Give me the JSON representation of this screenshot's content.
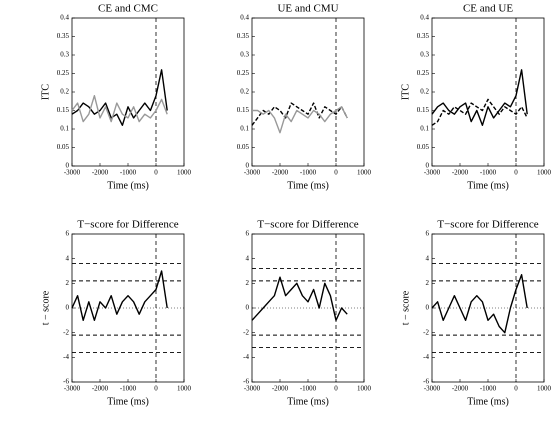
{
  "chart_data": [
    {
      "type": "line",
      "title": "CE and CMC",
      "xlabel": "Time (ms)",
      "ylabel": "ITC",
      "x": [
        -3000,
        -2800,
        -2600,
        -2400,
        -2200,
        -2000,
        -1800,
        -1600,
        -1400,
        -1200,
        -1000,
        -800,
        -600,
        -400,
        -200,
        0,
        200,
        400
      ],
      "xlim": [
        -3000,
        1000
      ],
      "xticks": [
        -3000,
        -2000,
        -1000,
        0,
        1000
      ],
      "ylim": [
        0,
        0.4
      ],
      "yticks": [
        0,
        0.05,
        0.1,
        0.15,
        0.2,
        0.25,
        0.3,
        0.35,
        0.4
      ],
      "vlines": [
        0
      ],
      "dashed_hlines": [],
      "dotted_hlines": [],
      "series": [
        {
          "color": "#000000",
          "style": "solid",
          "values": [
            0.14,
            0.15,
            0.17,
            0.16,
            0.14,
            0.15,
            0.17,
            0.13,
            0.14,
            0.11,
            0.16,
            0.13,
            0.15,
            0.17,
            0.15,
            0.19,
            0.26,
            0.15
          ]
        },
        {
          "color": "#999999",
          "style": "solid",
          "values": [
            0.15,
            0.17,
            0.12,
            0.14,
            0.19,
            0.13,
            0.16,
            0.12,
            0.17,
            0.14,
            0.13,
            0.16,
            0.12,
            0.14,
            0.13,
            0.15,
            0.18,
            0.14
          ]
        }
      ]
    },
    {
      "type": "line",
      "title": "UE and CMU",
      "xlabel": "Time (ms)",
      "x": [
        -3000,
        -2800,
        -2600,
        -2400,
        -2200,
        -2000,
        -1800,
        -1600,
        -1400,
        -1200,
        -1000,
        -800,
        -600,
        -400,
        -200,
        0,
        200,
        400
      ],
      "xlim": [
        -3000,
        1000
      ],
      "xticks": [
        -3000,
        -2000,
        -1000,
        0,
        1000
      ],
      "ylim": [
        0,
        0.4
      ],
      "yticks": [
        0,
        0.05,
        0.1,
        0.15,
        0.2,
        0.25,
        0.3,
        0.35,
        0.4
      ],
      "vlines": [
        0
      ],
      "dashed_hlines": [],
      "dotted_hlines": [],
      "series": [
        {
          "color": "#000000",
          "style": "dashed",
          "values": [
            0.11,
            0.13,
            0.15,
            0.14,
            0.16,
            0.15,
            0.13,
            0.17,
            0.16,
            0.15,
            0.14,
            0.17,
            0.13,
            0.16,
            0.15,
            0.14,
            0.16,
            0.13
          ]
        },
        {
          "color": "#999999",
          "style": "solid",
          "values": [
            0.15,
            0.15,
            0.14,
            0.15,
            0.13,
            0.09,
            0.14,
            0.12,
            0.15,
            0.14,
            0.13,
            0.15,
            0.14,
            0.12,
            0.14,
            0.15,
            0.16,
            0.13
          ]
        }
      ]
    },
    {
      "type": "line",
      "title": "CE and UE",
      "xlabel": "Time (ms)",
      "ylabel": "ITC",
      "x": [
        -3000,
        -2800,
        -2600,
        -2400,
        -2200,
        -2000,
        -1800,
        -1600,
        -1400,
        -1200,
        -1000,
        -800,
        -600,
        -400,
        -200,
        0,
        200,
        400
      ],
      "xlim": [
        -3000,
        1000
      ],
      "xticks": [
        -3000,
        -2000,
        -1000,
        0,
        1000
      ],
      "ylim": [
        0,
        0.4
      ],
      "yticks": [
        0,
        0.05,
        0.1,
        0.15,
        0.2,
        0.25,
        0.3,
        0.35,
        0.4
      ],
      "vlines": [
        0
      ],
      "dashed_hlines": [],
      "dotted_hlines": [],
      "series": [
        {
          "color": "#000000",
          "style": "solid",
          "values": [
            0.14,
            0.16,
            0.17,
            0.15,
            0.14,
            0.16,
            0.17,
            0.12,
            0.15,
            0.11,
            0.16,
            0.13,
            0.15,
            0.17,
            0.16,
            0.19,
            0.26,
            0.14
          ]
        },
        {
          "color": "#000000",
          "style": "dashed",
          "values": [
            0.11,
            0.12,
            0.15,
            0.14,
            0.16,
            0.15,
            0.14,
            0.17,
            0.16,
            0.15,
            0.18,
            0.16,
            0.14,
            0.16,
            0.15,
            0.14,
            0.16,
            0.13
          ]
        }
      ]
    },
    {
      "type": "line",
      "title": "T−score for Difference",
      "xlabel": "Time (ms)",
      "ylabel": "t − score",
      "x": [
        -3000,
        -2800,
        -2600,
        -2400,
        -2200,
        -2000,
        -1800,
        -1600,
        -1400,
        -1200,
        -1000,
        -800,
        -600,
        -400,
        -200,
        0,
        200,
        400
      ],
      "xlim": [
        -3000,
        1000
      ],
      "xticks": [
        -3000,
        -2000,
        -1000,
        0,
        1000
      ],
      "ylim": [
        -6,
        6
      ],
      "yticks": [
        -6,
        -4,
        -2,
        0,
        2,
        4,
        6
      ],
      "vlines": [
        0
      ],
      "dashed_hlines": [
        3.6,
        2.2,
        -2.2,
        -3.6
      ],
      "dotted_hlines": [
        0
      ],
      "series": [
        {
          "color": "#000000",
          "style": "solid",
          "values": [
            0,
            1,
            -1,
            0.5,
            -1,
            0.5,
            0,
            1,
            -0.5,
            0.5,
            1,
            0.5,
            -0.5,
            0.5,
            1,
            1.5,
            3,
            0
          ]
        }
      ]
    },
    {
      "type": "line",
      "title": "T−score for Difference",
      "xlabel": "Time (ms)",
      "x": [
        -3000,
        -2800,
        -2600,
        -2400,
        -2200,
        -2000,
        -1800,
        -1600,
        -1400,
        -1200,
        -1000,
        -800,
        -600,
        -400,
        -200,
        0,
        200,
        400
      ],
      "xlim": [
        -3000,
        1000
      ],
      "xticks": [
        -3000,
        -2000,
        -1000,
        0,
        1000
      ],
      "ylim": [
        -6,
        6
      ],
      "yticks": [
        -6,
        -4,
        -2,
        0,
        2,
        4,
        6
      ],
      "vlines": [
        0
      ],
      "dashed_hlines": [
        3.2,
        2.2,
        -2.2,
        -3.2
      ],
      "dotted_hlines": [
        0
      ],
      "series": [
        {
          "color": "#000000",
          "style": "solid",
          "values": [
            -1,
            -0.5,
            0,
            0.5,
            1,
            2.5,
            1,
            1.5,
            2,
            1,
            0.5,
            1.5,
            0,
            2,
            1,
            -1,
            0,
            -0.5
          ]
        }
      ]
    },
    {
      "type": "line",
      "title": "T−score for Difference",
      "xlabel": "Time (ms)",
      "ylabel": "t − score",
      "x": [
        -3000,
        -2800,
        -2600,
        -2400,
        -2200,
        -2000,
        -1800,
        -1600,
        -1400,
        -1200,
        -1000,
        -800,
        -600,
        -400,
        -200,
        0,
        200,
        400
      ],
      "xlim": [
        -3000,
        1000
      ],
      "xticks": [
        -3000,
        -2000,
        -1000,
        0,
        1000
      ],
      "ylim": [
        -6,
        6
      ],
      "yticks": [
        -6,
        -4,
        -2,
        0,
        2,
        4,
        6
      ],
      "vlines": [
        0
      ],
      "dashed_hlines": [
        3.6,
        2.2,
        -2.2,
        -3.6
      ],
      "dotted_hlines": [
        0
      ],
      "series": [
        {
          "color": "#000000",
          "style": "solid",
          "values": [
            0,
            0.5,
            -1,
            0,
            1,
            0,
            -1,
            0.5,
            1,
            0.5,
            -1,
            -0.5,
            -1.5,
            -2,
            0,
            1.5,
            2.7,
            0
          ]
        }
      ]
    }
  ]
}
